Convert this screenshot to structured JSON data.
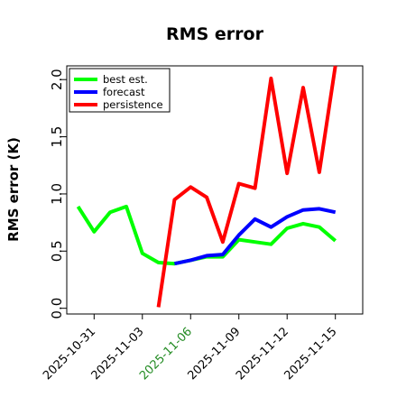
{
  "chart_data": {
    "type": "line",
    "title": "RMS error",
    "xlabel": "",
    "ylabel": "RMS error (K)",
    "ylim": [
      -0.05,
      2.12
    ],
    "yticks": [
      0.0,
      0.5,
      1.0,
      1.5,
      2.0
    ],
    "ytick_labels": [
      "0.0",
      "0.5",
      "1.0",
      "1.5",
      "2.0"
    ],
    "xticks": [
      {
        "x": 0,
        "label": "2025-10-31",
        "color": "#000000"
      },
      {
        "x": 3,
        "label": "2025-11-03",
        "color": "#000000"
      },
      {
        "x": 6,
        "label": "2025-11-06",
        "color": "#228b22"
      },
      {
        "x": 9,
        "label": "2025-11-09",
        "color": "#000000"
      },
      {
        "x": 12,
        "label": "2025-11-12",
        "color": "#000000"
      },
      {
        "x": 15,
        "label": "2025-11-15",
        "color": "#000000"
      }
    ],
    "xlim": [
      -1.7,
      16.7
    ],
    "grid": false,
    "legend_placement": "top-left",
    "series": [
      {
        "name": "best est.",
        "color": "#00ff00",
        "x": [
          -1,
          0,
          1,
          2,
          3,
          4,
          5,
          6,
          7,
          8,
          9,
          10,
          11,
          12,
          13,
          14,
          15
        ],
        "values": [
          0.89,
          0.67,
          0.84,
          0.89,
          0.48,
          0.4,
          0.39,
          0.42,
          0.45,
          0.45,
          0.6,
          0.58,
          0.56,
          0.7,
          0.74,
          0.71,
          0.59
        ]
      },
      {
        "name": "forecast",
        "color": "#0000ff",
        "x": [
          5,
          6,
          7,
          8,
          9,
          10,
          11,
          12,
          13,
          14,
          15
        ],
        "values": [
          0.39,
          0.42,
          0.46,
          0.47,
          0.64,
          0.78,
          0.71,
          0.8,
          0.86,
          0.87,
          0.84
        ]
      },
      {
        "name": "persistence",
        "color": "#ff0000",
        "x": [
          4,
          5,
          6,
          7,
          8,
          9,
          10,
          11,
          12,
          13,
          14,
          15
        ],
        "values": [
          0.01,
          0.95,
          1.06,
          0.97,
          0.58,
          1.09,
          1.05,
          2.01,
          1.18,
          1.93,
          1.19,
          2.12
        ]
      }
    ]
  }
}
